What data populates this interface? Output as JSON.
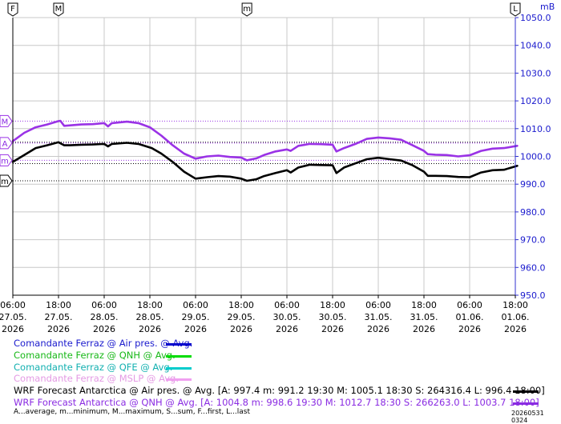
{
  "chart_data": {
    "type": "line",
    "y_unit": "mB",
    "ylim": [
      950,
      1050
    ],
    "y_ticks": [
      "1050.0",
      "1040.0",
      "1030.0",
      "1020.0",
      "1010.0",
      "1000.0",
      "990.0",
      "980.0",
      "970.0",
      "960.0",
      "950.0"
    ],
    "x_ticks": [
      {
        "time": "06:00",
        "date": "27.05.",
        "year": "2026"
      },
      {
        "time": "18:00",
        "date": "27.05.",
        "year": "2026"
      },
      {
        "time": "06:00",
        "date": "28.05.",
        "year": "2026"
      },
      {
        "time": "18:00",
        "date": "28.05.",
        "year": "2026"
      },
      {
        "time": "06:00",
        "date": "29.05.",
        "year": "2026"
      },
      {
        "time": "18:00",
        "date": "29.05.",
        "year": "2026"
      },
      {
        "time": "06:00",
        "date": "30.05.",
        "year": "2026"
      },
      {
        "time": "18:00",
        "date": "30.05.",
        "year": "2026"
      },
      {
        "time": "06:00",
        "date": "31.05.",
        "year": "2026"
      },
      {
        "time": "18:00",
        "date": "31.05.",
        "year": "2026"
      },
      {
        "time": "06:00",
        "date": "01.06.",
        "year": "2026"
      },
      {
        "time": "18:00",
        "date": "01.06.",
        "year": "2026"
      }
    ],
    "top_markers": [
      "F",
      "M",
      "m",
      "L"
    ],
    "left_markers": [
      "M",
      "A",
      "m",
      "m"
    ],
    "series": [
      {
        "name": "WRF Forecast Antarctica @ Air pres. @ Avg.",
        "color": "#000000",
        "points": [
          [
            "27.05. 06:00",
            998.0
          ],
          [
            "27.05. 09:00",
            1000.5
          ],
          [
            "27.05. 12:00",
            1003.0
          ],
          [
            "27.05. 15:00",
            1004.0
          ],
          [
            "27.05. 18:00",
            1005.1
          ],
          [
            "27.05. 19:30",
            1004.0
          ],
          [
            "27.05. 21:00",
            1004.0
          ],
          [
            "28.05. 00:00",
            1004.2
          ],
          [
            "28.05. 03:00",
            1004.3
          ],
          [
            "28.05. 06:00",
            1004.5
          ],
          [
            "28.05. 07:00",
            1003.6
          ],
          [
            "28.05. 08:00",
            1004.5
          ],
          [
            "28.05. 12:00",
            1004.9
          ],
          [
            "28.05. 15:00",
            1004.5
          ],
          [
            "28.05. 18:30",
            1003.0
          ],
          [
            "28.05. 21:00",
            1001.0
          ],
          [
            "29.05. 00:00",
            998.0
          ],
          [
            "29.05. 03:00",
            994.5
          ],
          [
            "29.05. 06:00",
            992.0
          ],
          [
            "29.05. 09:00",
            992.5
          ],
          [
            "29.05. 12:00",
            992.9
          ],
          [
            "29.05. 15:00",
            992.7
          ],
          [
            "29.05. 18:00",
            992.0
          ],
          [
            "29.05. 19:30",
            991.2
          ],
          [
            "29.05. 22:00",
            991.8
          ],
          [
            "30.05. 00:00",
            992.9
          ],
          [
            "30.05. 03:00",
            994.0
          ],
          [
            "30.05. 06:00",
            995.0
          ],
          [
            "30.05. 07:00",
            994.2
          ],
          [
            "30.05. 09:00",
            996.0
          ],
          [
            "30.05. 12:00",
            997.0
          ],
          [
            "30.05. 15:00",
            996.9
          ],
          [
            "30.05. 18:00",
            996.8
          ],
          [
            "30.05. 19:00",
            994.0
          ],
          [
            "30.05. 21:00",
            996.0
          ],
          [
            "31.05. 00:00",
            997.5
          ],
          [
            "31.05. 03:00",
            999.0
          ],
          [
            "31.05. 06:00",
            999.5
          ],
          [
            "31.05. 09:00",
            999.0
          ],
          [
            "31.05. 12:00",
            998.5
          ],
          [
            "31.05. 15:00",
            996.8
          ],
          [
            "31.05. 18:00",
            994.5
          ],
          [
            "31.05. 19:00",
            993.0
          ],
          [
            "31.05. 21:00",
            993.0
          ],
          [
            "01.06. 00:00",
            992.9
          ],
          [
            "01.06. 03:00",
            992.6
          ],
          [
            "01.06. 06:00",
            992.5
          ],
          [
            "01.06. 09:00",
            994.2
          ],
          [
            "01.06. 12:00",
            995.0
          ],
          [
            "01.06. 15:00",
            995.2
          ],
          [
            "01.06. 18:00",
            996.4
          ],
          [
            "01.06. 18:30",
            996.6
          ]
        ]
      },
      {
        "name": "WRF Forecast Antarctica @ QNH @ Avg.",
        "color": "#9a32e6",
        "points": [
          [
            "27.05. 06:00",
            1005.5
          ],
          [
            "27.05. 09:00",
            1008.5
          ],
          [
            "27.05. 12:00",
            1010.5
          ],
          [
            "27.05. 15:00",
            1011.5
          ],
          [
            "27.05. 18:00",
            1012.7
          ],
          [
            "27.05. 18:30",
            1012.8
          ],
          [
            "27.05. 19:30",
            1011.0
          ],
          [
            "28.05. 00:00",
            1011.5
          ],
          [
            "28.05. 03:00",
            1011.6
          ],
          [
            "28.05. 06:00",
            1012.0
          ],
          [
            "28.05. 07:00",
            1010.8
          ],
          [
            "28.05. 08:00",
            1012.0
          ],
          [
            "28.05. 12:00",
            1012.5
          ],
          [
            "28.05. 15:00",
            1012.0
          ],
          [
            "28.05. 18:00",
            1010.5
          ],
          [
            "28.05. 21:00",
            1007.5
          ],
          [
            "29.05. 00:00",
            1004.0
          ],
          [
            "29.05. 03:00",
            1001.0
          ],
          [
            "29.05. 06:00",
            999.2
          ],
          [
            "29.05. 09:00",
            1000.0
          ],
          [
            "29.05. 12:00",
            1000.3
          ],
          [
            "29.05. 15:00",
            999.8
          ],
          [
            "29.05. 18:00",
            999.6
          ],
          [
            "29.05. 19:30",
            998.6
          ],
          [
            "29.05. 22:00",
            999.3
          ],
          [
            "30.05. 00:00",
            1000.5
          ],
          [
            "30.05. 03:00",
            1001.8
          ],
          [
            "30.05. 06:00",
            1002.5
          ],
          [
            "30.05. 07:00",
            1002.0
          ],
          [
            "30.05. 09:00",
            1003.8
          ],
          [
            "30.05. 12:00",
            1004.5
          ],
          [
            "30.05. 15:00",
            1004.4
          ],
          [
            "30.05. 18:00",
            1004.2
          ],
          [
            "30.05. 19:00",
            1001.8
          ],
          [
            "30.05. 21:00",
            1003.0
          ],
          [
            "31.05. 00:00",
            1004.5
          ],
          [
            "31.05. 03:00",
            1006.3
          ],
          [
            "31.05. 06:00",
            1006.8
          ],
          [
            "31.05. 09:00",
            1006.5
          ],
          [
            "31.05. 12:00",
            1006.0
          ],
          [
            "31.05. 15:00",
            1004.0
          ],
          [
            "31.05. 18:00",
            1002.0
          ],
          [
            "31.05. 19:00",
            1000.8
          ],
          [
            "31.05. 21:00",
            1000.6
          ],
          [
            "01.06. 00:00",
            1000.5
          ],
          [
            "01.06. 03:00",
            1000.0
          ],
          [
            "01.06. 06:00",
            1000.4
          ],
          [
            "01.06. 09:00",
            1002.0
          ],
          [
            "01.06. 12:00",
            1002.8
          ],
          [
            "01.06. 15:00",
            1003.0
          ],
          [
            "01.06. 18:00",
            1003.7
          ],
          [
            "01.06. 18:30",
            1003.8
          ]
        ]
      }
    ],
    "reference_lines": [
      {
        "value": 1012.7,
        "color": "#9a32e6"
      },
      {
        "value": 1005.1,
        "color": "#000000"
      },
      {
        "value": 1004.8,
        "color": "#9a32e6"
      },
      {
        "value": 998.6,
        "color": "#9a32e6"
      },
      {
        "value": 997.4,
        "color": "#000000"
      },
      {
        "value": 991.2,
        "color": "#000000"
      }
    ]
  },
  "legend": [
    {
      "text": "Comandante Ferraz @ Air pres. @ Avg.",
      "text_color": "#1a1acd",
      "line_color": "#0000cc"
    },
    {
      "text": "Comandante Ferraz @ QNH @ Avg.",
      "text_color": "#18b818",
      "line_color": "#00dd00"
    },
    {
      "text": "Comandante Ferraz @ QFE @ Avg.",
      "text_color": "#12b0b0",
      "line_color": "#00cccc"
    },
    {
      "text": "Comandante Ferraz @ MSLP @ Avg.",
      "text_color": "#e49ae4",
      "line_color": "#f0a0f0"
    },
    {
      "text": "WRF Forecast Antarctica @ Air pres. @ Avg. [A: 997.4 m: 991.2 19:30 M: 1005.1 18:30 S: 264316.4 L: 996.4 18:00]",
      "text_color": "#000000",
      "line_color": "#000000"
    },
    {
      "text": "WRF Forecast Antarctica @ QNH @ Avg. [A: 1004.8 m: 998.6 19:30 M: 1012.7 18:30 S: 266263.0 L: 1003.7 18:00]",
      "text_color": "#8a2be2",
      "line_color": "#8a2be2"
    }
  ],
  "footer": {
    "abbreviations": "A...average, m...minimum, M...maximum, S...sum, F...first, L...last",
    "stamp": "20260531 0324"
  }
}
